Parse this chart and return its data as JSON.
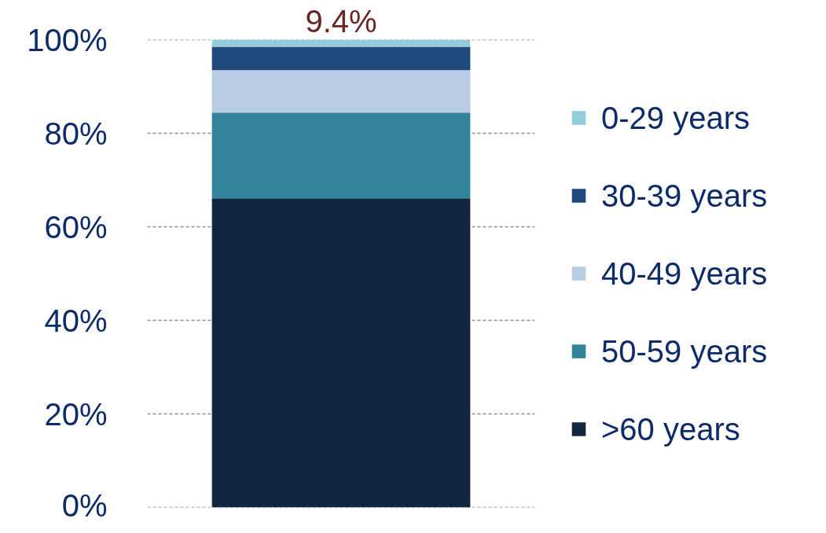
{
  "chart_data": {
    "type": "bar",
    "stacked": true,
    "categories": [
      null
    ],
    "series": [
      {
        "name": ">60 years",
        "color": "#12263f",
        "values": [
          66.1
        ]
      },
      {
        "name": "50-59 years",
        "color": "#31849b",
        "values": [
          18.3
        ]
      },
      {
        "name": "40-49 years",
        "color": "#b9cce4",
        "values": [
          9.1
        ]
      },
      {
        "name": "30-39 years",
        "color": "#1f497d",
        "values": [
          5.0
        ]
      },
      {
        "name": "0-29 years",
        "color": "#92cddc",
        "values": [
          1.5
        ]
      }
    ],
    "ylim": [
      0,
      100
    ],
    "yticks": [
      {
        "value": 0,
        "label": "0%"
      },
      {
        "value": 20,
        "label": "20%"
      },
      {
        "value": 40,
        "label": "40%"
      },
      {
        "value": 60,
        "label": "60%"
      },
      {
        "value": 80,
        "label": "80%"
      },
      {
        "value": 100,
        "label": "100%"
      }
    ],
    "grid": "y",
    "legend": "right",
    "tick_labels": "y",
    "annotations": [
      "9.4%"
    ]
  }
}
